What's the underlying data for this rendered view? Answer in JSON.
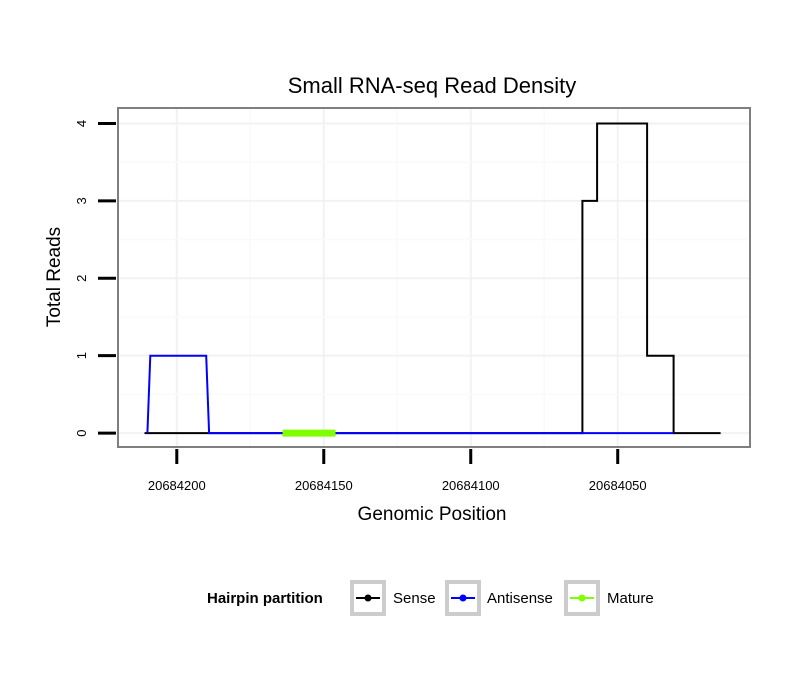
{
  "chart_data": {
    "type": "line",
    "title": "Small RNA-seq Read Density",
    "xlabel": "Genomic Position",
    "ylabel": "Total Reads",
    "x_reversed": true,
    "xlim": [
      20684220,
      20684005
    ],
    "ylim": [
      -0.18,
      4.2
    ],
    "xticks": [
      20684200,
      20684150,
      20684100,
      20684050
    ],
    "xtick_labels": [
      "20684200",
      "20684150",
      "20684100",
      "20684050"
    ],
    "yticks": [
      0,
      1,
      2,
      3,
      4
    ],
    "ytick_labels": [
      "0",
      "1",
      "2",
      "3",
      "4"
    ],
    "grid": true,
    "legend": {
      "title": "Hairpin partition",
      "position": "bottom",
      "entries": [
        "Sense",
        "Antisense",
        "Mature"
      ]
    },
    "series": [
      {
        "name": "Sense",
        "color": "#000000",
        "x": [
          20684211,
          20684062,
          20684062,
          20684060,
          20684060,
          20684057,
          20684057,
          20684040,
          20684040,
          20684036,
          20684036,
          20684031,
          20684031,
          20684015
        ],
        "y": [
          0,
          0,
          3,
          3,
          3,
          3,
          4,
          4,
          1,
          1,
          1,
          1,
          0,
          0
        ]
      },
      {
        "name": "Antisense",
        "color": "#0000ff",
        "x": [
          20684210,
          20684209,
          20684190,
          20684189,
          20684189,
          20684062,
          20684062,
          20684031
        ],
        "y": [
          0,
          1,
          1,
          0,
          0,
          0,
          0,
          0
        ]
      },
      {
        "name": "Mature",
        "color": "#7fff00",
        "x": [
          20684164,
          20684146
        ],
        "y": [
          0,
          0
        ]
      }
    ]
  }
}
